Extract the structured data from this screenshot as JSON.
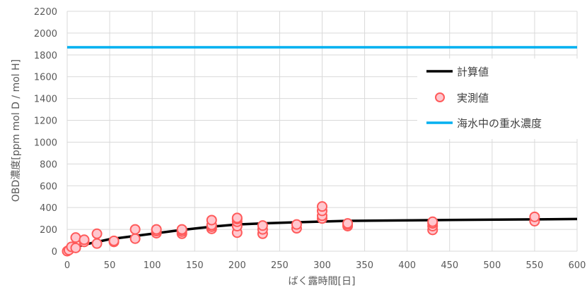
{
  "chart_data": {
    "type": "scatter",
    "xlabel": "ばく露時間[日]",
    "ylabel": "OBD濃度[ppm mol D / mol H]",
    "xlim": [
      0,
      600
    ],
    "ylim": [
      0,
      2200
    ],
    "xticks": [
      0,
      50,
      100,
      150,
      200,
      250,
      300,
      350,
      400,
      450,
      500,
      550,
      600
    ],
    "yticks": [
      0,
      200,
      400,
      600,
      800,
      1000,
      1200,
      1400,
      1600,
      1800,
      2000,
      2200
    ],
    "grid": true,
    "legend_position": "right",
    "series": [
      {
        "name": "計算値",
        "kind": "line",
        "color": "#000000",
        "x": [
          0,
          10,
          20,
          35,
          50,
          80,
          105,
          135,
          170,
          200,
          230,
          270,
          300,
          330,
          430,
          550,
          600
        ],
        "y": [
          0,
          35,
          60,
          85,
          110,
          140,
          165,
          195,
          225,
          245,
          255,
          265,
          272,
          278,
          285,
          292,
          295
        ]
      },
      {
        "name": "実測値",
        "kind": "scatter",
        "color": "#ff5a5a",
        "fill": "#ffc7ce",
        "x": [
          0,
          2,
          5,
          10,
          10,
          20,
          20,
          35,
          35,
          55,
          55,
          80,
          80,
          105,
          105,
          105,
          135,
          135,
          135,
          135,
          170,
          170,
          170,
          170,
          200,
          200,
          200,
          200,
          200,
          230,
          230,
          230,
          270,
          270,
          300,
          300,
          300,
          300,
          330,
          330,
          330,
          430,
          430,
          430,
          430,
          550,
          550
        ],
        "y": [
          0,
          10,
          40,
          30,
          125,
          85,
          105,
          70,
          160,
          85,
          95,
          115,
          200,
          165,
          185,
          200,
          160,
          180,
          195,
          200,
          205,
          225,
          240,
          285,
          170,
          230,
          270,
          295,
          305,
          160,
          200,
          235,
          210,
          245,
          300,
          325,
          370,
          410,
          230,
          245,
          255,
          195,
          230,
          255,
          270,
          275,
          315
        ]
      },
      {
        "name": "海水中の重水濃度",
        "kind": "line",
        "color": "#00b0f0",
        "x": [
          0,
          600
        ],
        "y": [
          1870,
          1870
        ]
      }
    ]
  },
  "colors": {
    "grid": "#d9d9d9",
    "axis_text": "#595959"
  }
}
